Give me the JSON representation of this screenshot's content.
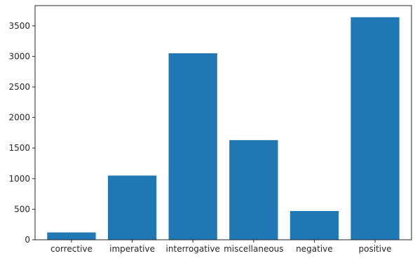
{
  "chart_data": {
    "type": "bar",
    "title": "",
    "xlabel": "",
    "ylabel": "",
    "categories": [
      "corrective",
      "imperative",
      "interrogative",
      "miscellaneous",
      "negative",
      "positive"
    ],
    "values": [
      120,
      1050,
      3050,
      1630,
      470,
      3640
    ],
    "ylim": [
      0,
      3830
    ],
    "yticks": [
      0,
      500,
      1000,
      1500,
      2000,
      2500,
      3000,
      3500
    ],
    "bar_color": "#1f77b4",
    "grid": false,
    "legend": "none"
  }
}
